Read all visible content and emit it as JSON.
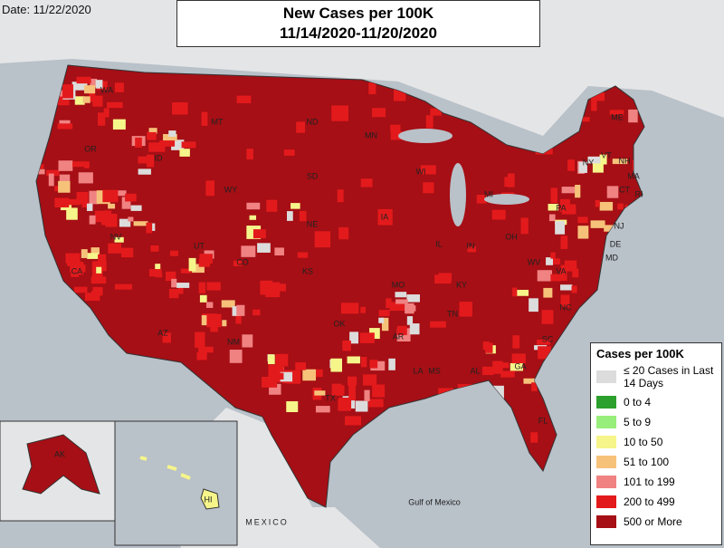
{
  "header": {
    "date": "Date: 11/22/2020",
    "title": "New Cases per 100K",
    "subtitle": "11/14/2020-11/20/2020"
  },
  "legend": {
    "title": "Cases per 100K",
    "items": [
      {
        "label": "≤ 20 Cases in Last 14 Days",
        "color": "#dcdcdc"
      },
      {
        "label": "0 to 4",
        "color": "#2ca02c"
      },
      {
        "label": "5 to 9",
        "color": "#98ee7a"
      },
      {
        "label": "10 to 50",
        "color": "#f6f58a"
      },
      {
        "label": "51 to 100",
        "color": "#f6c27a"
      },
      {
        "label": "101 to 199",
        "color": "#f08282"
      },
      {
        "label": "200 to 499",
        "color": "#e31a1c"
      },
      {
        "label": "500 or More",
        "color": "#a50f15"
      }
    ]
  },
  "map": {
    "states": [
      "WA",
      "OR",
      "CA",
      "NV",
      "ID",
      "MT",
      "WY",
      "UT",
      "AZ",
      "CO",
      "NM",
      "ND",
      "SD",
      "NE",
      "KS",
      "OK",
      "TX",
      "MN",
      "IA",
      "MO",
      "AR",
      "LA",
      "WI",
      "IL",
      "MS",
      "AL",
      "TN",
      "KY",
      "IN",
      "MI",
      "OH",
      "GA",
      "FL",
      "SC",
      "NC",
      "VA",
      "WV",
      "PA",
      "NY",
      "ME",
      "NH",
      "VT",
      "MA",
      "CT",
      "RI",
      "NJ",
      "DE",
      "MD",
      "AK",
      "HI"
    ],
    "places": [
      "MEXICO",
      "Gulf of Mexico"
    ]
  }
}
